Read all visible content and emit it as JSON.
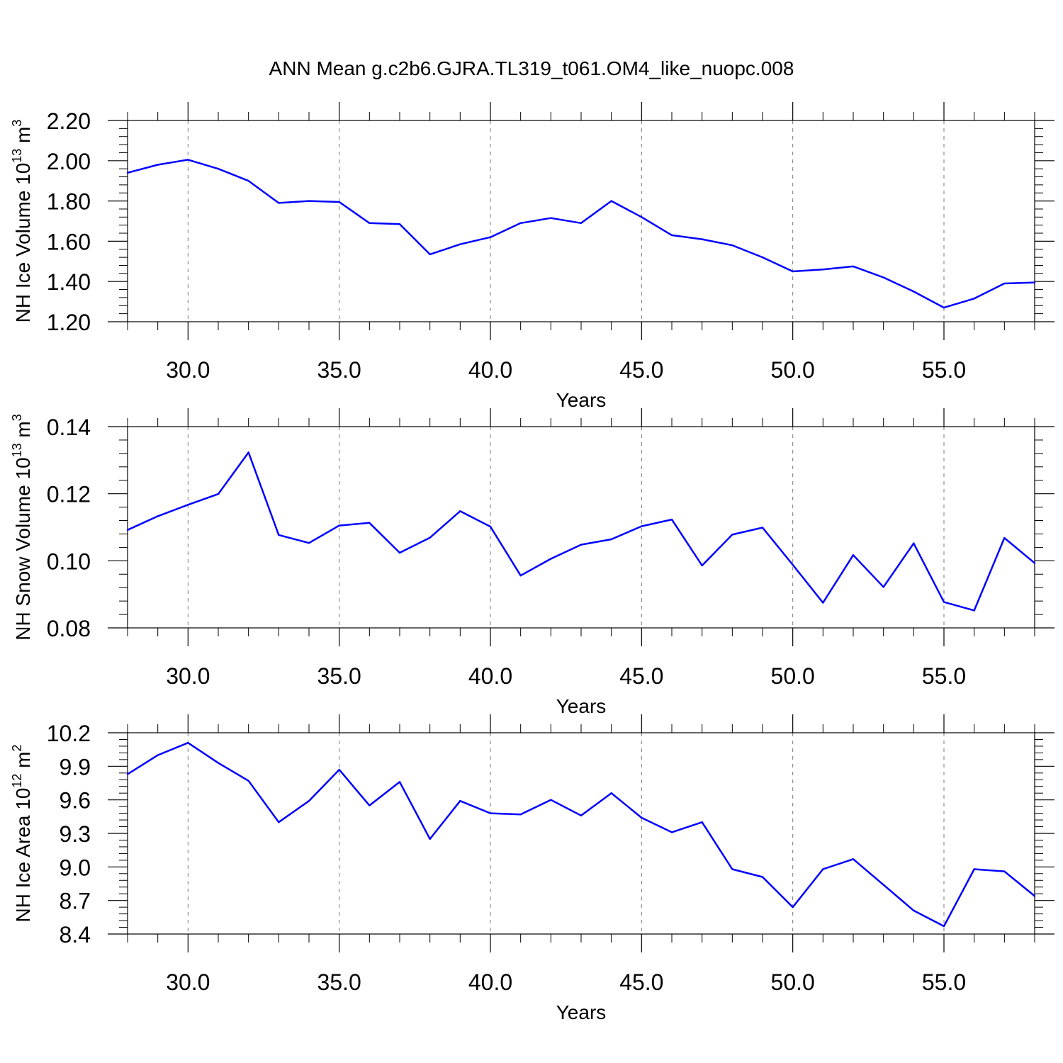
{
  "figure": {
    "title": "ANN Mean g.c2b6.GJRA.TL319_t061.OM4_like_nuopc.008"
  },
  "chart_data": [
    {
      "type": "line",
      "ylabel": "NH Ice Volume 10",
      "ylabel_exp": "13",
      "ylabel_unit": " m",
      "ylabel_unit_exp": "3",
      "xlabel": "Years",
      "xlim": [
        28,
        58
      ],
      "ylim": [
        1.2,
        2.2
      ],
      "x_ticks": [
        30,
        35,
        40,
        45,
        50,
        55
      ],
      "x_tick_labels": [
        "30.0",
        "35.0",
        "40.0",
        "45.0",
        "50.0",
        "55.0"
      ],
      "y_ticks": [
        1.2,
        1.4,
        1.6,
        1.8,
        2.0,
        2.2
      ],
      "y_tick_labels": [
        "1.20",
        "1.40",
        "1.60",
        "1.80",
        "2.00",
        "2.20"
      ],
      "grid": "vertical dashed at major x ticks",
      "line_color": "#0000ff",
      "x": [
        28,
        29,
        30,
        31,
        32,
        33,
        34,
        35,
        36,
        37,
        38,
        39,
        40,
        41,
        42,
        43,
        44,
        45,
        46,
        47,
        48,
        49,
        50,
        51,
        52,
        53,
        54,
        55,
        56,
        57,
        58
      ],
      "values": [
        1.94,
        1.98,
        2.005,
        1.96,
        1.9,
        1.79,
        1.8,
        1.795,
        1.69,
        1.685,
        1.535,
        1.585,
        1.62,
        1.69,
        1.715,
        1.69,
        1.8,
        1.72,
        1.63,
        1.61,
        1.58,
        1.52,
        1.45,
        1.46,
        1.475,
        1.42,
        1.35,
        1.27,
        1.315,
        1.39,
        1.395
      ]
    },
    {
      "type": "line",
      "ylabel": "NH Snow Volume 10",
      "ylabel_exp": "13",
      "ylabel_unit": " m",
      "ylabel_unit_exp": "3",
      "xlabel": "Years",
      "xlim": [
        28,
        58
      ],
      "ylim": [
        0.08,
        0.14
      ],
      "x_ticks": [
        30,
        35,
        40,
        45,
        50,
        55
      ],
      "x_tick_labels": [
        "30.0",
        "35.0",
        "40.0",
        "45.0",
        "50.0",
        "55.0"
      ],
      "y_ticks": [
        0.08,
        0.1,
        0.12,
        0.14
      ],
      "y_tick_labels": [
        "0.08",
        "0.10",
        "0.12",
        "0.14"
      ],
      "grid": "vertical dashed at major x ticks",
      "line_color": "#0000ff",
      "x": [
        28,
        29,
        30,
        31,
        32,
        33,
        34,
        35,
        36,
        37,
        38,
        39,
        40,
        41,
        42,
        43,
        44,
        45,
        46,
        47,
        48,
        49,
        50,
        51,
        52,
        53,
        54,
        55,
        56,
        57,
        58
      ],
      "values": [
        0.1092,
        0.1133,
        0.1167,
        0.1199,
        0.1323,
        0.1077,
        0.1053,
        0.1105,
        0.1113,
        0.1024,
        0.1069,
        0.1148,
        0.1102,
        0.0956,
        0.1006,
        0.1048,
        0.1064,
        0.1103,
        0.1123,
        0.0986,
        0.1078,
        0.1099,
        0.0988,
        0.0875,
        0.1017,
        0.0922,
        0.1052,
        0.0877,
        0.0852,
        0.1068,
        0.0993
      ]
    },
    {
      "type": "line",
      "ylabel": "NH Ice Area 10",
      "ylabel_exp": "12",
      "ylabel_unit": " m",
      "ylabel_unit_exp": "2",
      "xlabel": "Years",
      "xlim": [
        28,
        58
      ],
      "ylim": [
        8.4,
        10.2
      ],
      "x_ticks": [
        30,
        35,
        40,
        45,
        50,
        55
      ],
      "x_tick_labels": [
        "30.0",
        "35.0",
        "40.0",
        "45.0",
        "50.0",
        "55.0"
      ],
      "y_ticks": [
        8.4,
        8.7,
        9.0,
        9.3,
        9.6,
        9.9,
        10.2
      ],
      "y_tick_labels": [
        "8.4",
        "8.7",
        "9.0",
        "9.3",
        "9.6",
        "9.9",
        "10.2"
      ],
      "grid": "vertical dashed at major x ticks",
      "line_color": "#0000ff",
      "x": [
        28,
        29,
        30,
        31,
        32,
        33,
        34,
        35,
        36,
        37,
        38,
        39,
        40,
        41,
        42,
        43,
        44,
        45,
        46,
        47,
        48,
        49,
        50,
        51,
        52,
        53,
        54,
        55,
        56,
        57,
        58
      ],
      "values": [
        9.83,
        10.0,
        10.11,
        9.93,
        9.77,
        9.4,
        9.59,
        9.87,
        9.55,
        9.76,
        9.25,
        9.59,
        9.48,
        9.47,
        9.6,
        9.46,
        9.66,
        9.44,
        9.31,
        9.4,
        8.98,
        8.91,
        8.64,
        8.98,
        9.07,
        8.84,
        8.61,
        8.47,
        8.98,
        8.96,
        8.74
      ]
    }
  ]
}
